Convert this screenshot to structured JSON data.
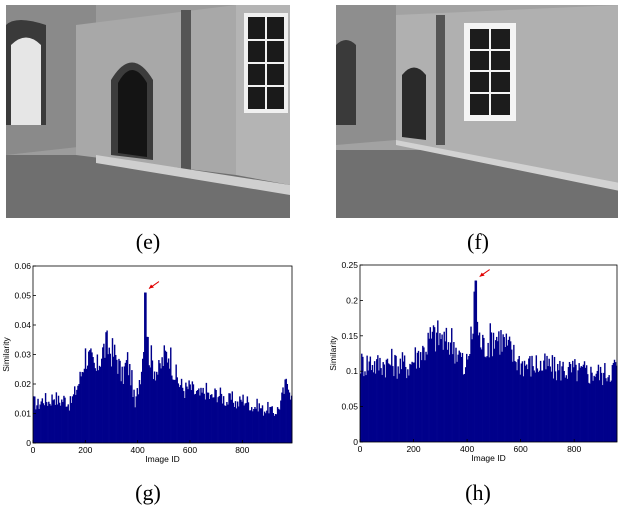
{
  "captions": [
    "(e)",
    "(f)",
    "(g)",
    "(h)"
  ],
  "photos": [
    {
      "name": "photo-e",
      "caption_index": 0
    },
    {
      "name": "photo-f",
      "caption_index": 1
    }
  ],
  "colors": {
    "bar": "#00008B",
    "arrow": "#e00000",
    "axis": "#000000"
  },
  "chart_data": [
    {
      "type": "bar",
      "xlabel": "Image ID",
      "ylabel": "Similarity",
      "xlim": [
        0,
        990
      ],
      "ylim": [
        0,
        0.06
      ],
      "yticks": [
        "0",
        "0.01",
        "0.02",
        "0.03",
        "0.04",
        "0.05",
        "0.06"
      ],
      "ytick_values": [
        0,
        0.01,
        0.02,
        0.03,
        0.04,
        0.05,
        0.06
      ],
      "xticks": [
        "0",
        "200",
        "400",
        "600",
        "800"
      ],
      "xtick_values": [
        0,
        200,
        400,
        600,
        800
      ],
      "peak": {
        "x": 428,
        "y": 0.051
      },
      "profile": [
        [
          0,
          0.014
        ],
        [
          20,
          0.013
        ],
        [
          40,
          0.015
        ],
        [
          60,
          0.014
        ],
        [
          80,
          0.016
        ],
        [
          100,
          0.014
        ],
        [
          120,
          0.015
        ],
        [
          140,
          0.013
        ],
        [
          160,
          0.017
        ],
        [
          180,
          0.022
        ],
        [
          200,
          0.03
        ],
        [
          220,
          0.028
        ],
        [
          240,
          0.024
        ],
        [
          260,
          0.03
        ],
        [
          280,
          0.033
        ],
        [
          300,
          0.031
        ],
        [
          320,
          0.029
        ],
        [
          340,
          0.022
        ],
        [
          360,
          0.028
        ],
        [
          380,
          0.02
        ],
        [
          390,
          0.012
        ],
        [
          400,
          0.018
        ],
        [
          420,
          0.03
        ],
        [
          428,
          0.051
        ],
        [
          440,
          0.032
        ],
        [
          460,
          0.026
        ],
        [
          480,
          0.024
        ],
        [
          500,
          0.029
        ],
        [
          520,
          0.031
        ],
        [
          540,
          0.024
        ],
        [
          560,
          0.02
        ],
        [
          580,
          0.018
        ],
        [
          600,
          0.019
        ],
        [
          620,
          0.017
        ],
        [
          640,
          0.016
        ],
        [
          660,
          0.018
        ],
        [
          680,
          0.015
        ],
        [
          700,
          0.017
        ],
        [
          720,
          0.016
        ],
        [
          740,
          0.014
        ],
        [
          760,
          0.015
        ],
        [
          780,
          0.013
        ],
        [
          800,
          0.015
        ],
        [
          820,
          0.014
        ],
        [
          840,
          0.012
        ],
        [
          860,
          0.013
        ],
        [
          880,
          0.011
        ],
        [
          900,
          0.012
        ],
        [
          920,
          0.01
        ],
        [
          940,
          0.012
        ],
        [
          960,
          0.018
        ],
        [
          975,
          0.022
        ],
        [
          990,
          0.014
        ]
      ]
    },
    {
      "type": "bar",
      "xlabel": "Image ID",
      "ylabel": "Similarity",
      "xlim": [
        0,
        960
      ],
      "ylim": [
        0,
        0.25
      ],
      "yticks": [
        "0",
        "0.05",
        "0.1",
        "0.15",
        "0.2",
        "0.25"
      ],
      "ytick_values": [
        0,
        0.05,
        0.1,
        0.15,
        0.2,
        0.25
      ],
      "xticks": [
        "0",
        "200",
        "400",
        "600",
        "800"
      ],
      "xtick_values": [
        0,
        200,
        400,
        600,
        800
      ],
      "peak": {
        "x": 432,
        "y": 0.228
      },
      "profile": [
        [
          0,
          0.112
        ],
        [
          20,
          0.11
        ],
        [
          40,
          0.114
        ],
        [
          60,
          0.108
        ],
        [
          80,
          0.112
        ],
        [
          100,
          0.11
        ],
        [
          120,
          0.113
        ],
        [
          140,
          0.108
        ],
        [
          160,
          0.11
        ],
        [
          180,
          0.106
        ],
        [
          200,
          0.118
        ],
        [
          220,
          0.125
        ],
        [
          240,
          0.13
        ],
        [
          260,
          0.145
        ],
        [
          280,
          0.15
        ],
        [
          300,
          0.148
        ],
        [
          320,
          0.138
        ],
        [
          340,
          0.145
        ],
        [
          360,
          0.13
        ],
        [
          380,
          0.118
        ],
        [
          390,
          0.09
        ],
        [
          400,
          0.12
        ],
        [
          420,
          0.15
        ],
        [
          432,
          0.228
        ],
        [
          440,
          0.15
        ],
        [
          460,
          0.135
        ],
        [
          480,
          0.142
        ],
        [
          500,
          0.15
        ],
        [
          520,
          0.148
        ],
        [
          540,
          0.14
        ],
        [
          560,
          0.13
        ],
        [
          580,
          0.118
        ],
        [
          600,
          0.112
        ],
        [
          620,
          0.11
        ],
        [
          640,
          0.108
        ],
        [
          660,
          0.11
        ],
        [
          680,
          0.106
        ],
        [
          700,
          0.108
        ],
        [
          720,
          0.104
        ],
        [
          740,
          0.102
        ],
        [
          760,
          0.104
        ],
        [
          780,
          0.1
        ],
        [
          800,
          0.102
        ],
        [
          820,
          0.098
        ],
        [
          840,
          0.1
        ],
        [
          860,
          0.096
        ],
        [
          880,
          0.1
        ],
        [
          900,
          0.095
        ],
        [
          920,
          0.098
        ],
        [
          940,
          0.102
        ],
        [
          960,
          0.11
        ]
      ]
    }
  ]
}
